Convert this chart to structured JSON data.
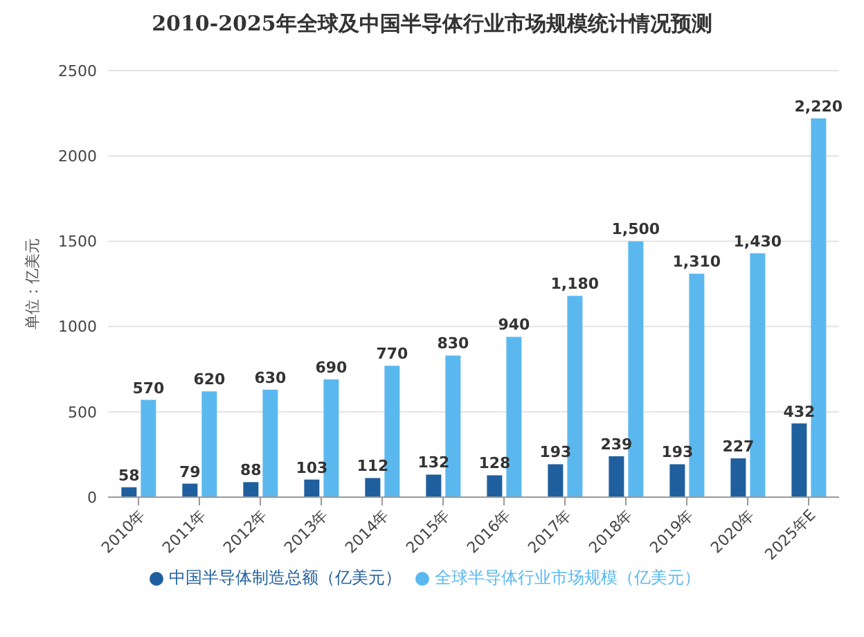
{
  "chart_data": {
    "type": "bar",
    "title": "2010-2025年全球及中国半导体行业市场规模统计情况预测",
    "ylabel": "单位：亿美元",
    "categories": [
      "2010年",
      "2011年",
      "2012年",
      "2013年",
      "2014年",
      "2015年",
      "2016年",
      "2017年",
      "2018年",
      "2019年",
      "2020年",
      "2025年E"
    ],
    "series": [
      {
        "name": "中国半导体制造总额（亿美元）",
        "color": "#1f5f9e",
        "values": [
          58,
          79,
          88,
          103,
          112,
          132,
          128,
          193,
          239,
          193,
          227,
          432
        ]
      },
      {
        "name": "全球半导体行业市场规模（亿美元）",
        "color": "#5bb8ef",
        "values": [
          570,
          620,
          630,
          690,
          770,
          830,
          940,
          1180,
          1500,
          1310,
          1430,
          2220
        ]
      }
    ],
    "value_labels": [
      [
        "58",
        "79",
        "88",
        "103",
        "112",
        "132",
        "128",
        "193",
        "239",
        "193",
        "227",
        "432"
      ],
      [
        "570",
        "620",
        "630",
        "690",
        "770",
        "830",
        "940",
        "1,180",
        "1,500",
        "1,310",
        "1,430",
        "2,220"
      ]
    ],
    "ylim": [
      0,
      2500
    ],
    "yticks": [
      0,
      500,
      1000,
      1500,
      2000,
      2500
    ],
    "grid": "y",
    "legend": "bottom"
  }
}
